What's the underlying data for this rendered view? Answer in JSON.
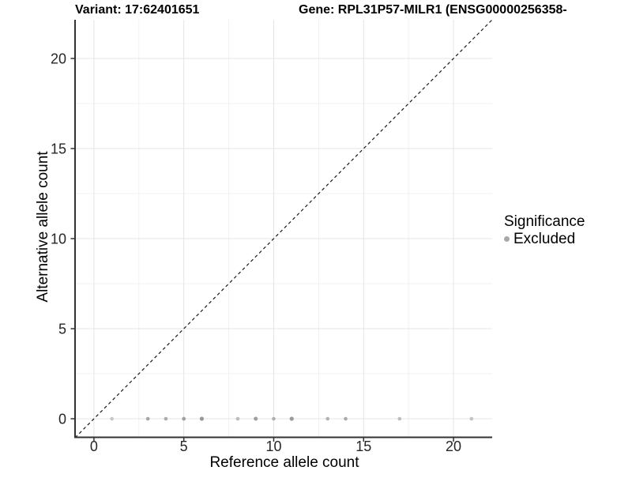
{
  "titles": {
    "variant": "Variant: 17:62401651",
    "gene": "Gene: RPL31P57-MILR1 (ENSG00000256358-"
  },
  "chart_data": {
    "type": "scatter",
    "xlabel": "Reference allele count",
    "ylabel": "Alternative allele count",
    "x_ticks": [
      0,
      5,
      10,
      15,
      20
    ],
    "y_ticks": [
      0,
      5,
      10,
      15,
      20
    ],
    "xlim": [
      -1.05,
      22.15
    ],
    "ylim": [
      -1.03,
      22.15
    ],
    "grid": {
      "major": true,
      "minor": true
    },
    "identity_line": {
      "slope": 1,
      "intercept": 0,
      "style": "dashed",
      "color": "#1a1a1a"
    },
    "points": [
      {
        "x": 1,
        "y": 0,
        "color": "#c7c7c7",
        "r": 2.3
      },
      {
        "x": 3,
        "y": 0,
        "color": "#a6a6a6",
        "r": 2.3
      },
      {
        "x": 4,
        "y": 0,
        "color": "#ababab",
        "r": 2.3
      },
      {
        "x": 5,
        "y": 0,
        "color": "#a0a0a0",
        "r": 2.4
      },
      {
        "x": 6,
        "y": 0,
        "color": "#989898",
        "r": 2.6
      },
      {
        "x": 8,
        "y": 0,
        "color": "#bcbcbc",
        "r": 2.3
      },
      {
        "x": 9,
        "y": 0,
        "color": "#9d9d9d",
        "r": 2.5
      },
      {
        "x": 10,
        "y": 0,
        "color": "#b0b0b0",
        "r": 2.3
      },
      {
        "x": 11,
        "y": 0,
        "color": "#9a9a9a",
        "r": 2.6
      },
      {
        "x": 13,
        "y": 0,
        "color": "#b2b2b2",
        "r": 2.3
      },
      {
        "x": 14,
        "y": 0,
        "color": "#a9a9a9",
        "r": 2.3
      },
      {
        "x": 17,
        "y": 0,
        "color": "#bdbdbd",
        "r": 2.3
      },
      {
        "x": 21,
        "y": 0,
        "color": "#c3c3c3",
        "r": 2.3
      }
    ],
    "legend": {
      "position": "right",
      "title": "Significance",
      "items": [
        {
          "label": "Excluded",
          "color": "#a8a8a8"
        }
      ]
    },
    "colors": {
      "grid_major": "#e4e4e4",
      "grid_minor": "#f1f1f1",
      "axis_line": "#333333",
      "tick_text": "#262626"
    }
  }
}
